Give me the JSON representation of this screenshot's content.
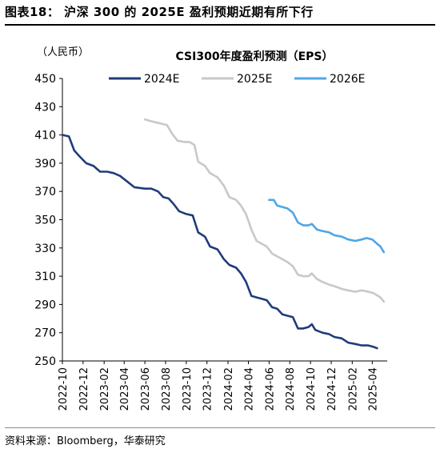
{
  "figure": {
    "title": "图表18： 沪深 300 的 2025E 盈利预期近期有所下行",
    "source": "资料来源：Bloomberg，华泰研究"
  },
  "chart_data": {
    "type": "line",
    "title": "CSI300年度盈利预测（EPS）",
    "ylabel": "（人民币）",
    "xlabel": "",
    "ylim": [
      250,
      450
    ],
    "yticks": [
      250,
      270,
      290,
      310,
      330,
      350,
      370,
      390,
      410,
      430,
      450
    ],
    "xlim": [
      "2022-10-01",
      "2025-05-15"
    ],
    "xticks": [
      "2022-10",
      "2022-12",
      "2023-02",
      "2023-04",
      "2023-06",
      "2023-08",
      "2023-10",
      "2023-12",
      "2024-02",
      "2024-04",
      "2024-06",
      "2024-08",
      "2024-10",
      "2024-12",
      "2025-02",
      "2025-04"
    ],
    "grid": false,
    "legend_position": "top",
    "series": [
      {
        "name": "2024E",
        "color": "#1f3c7c",
        "points": [
          [
            "2022-10-01",
            410
          ],
          [
            "2022-10-20",
            409
          ],
          [
            "2022-11-05",
            399
          ],
          [
            "2022-11-20",
            395
          ],
          [
            "2022-12-10",
            390
          ],
          [
            "2023-01-01",
            388
          ],
          [
            "2023-01-20",
            384
          ],
          [
            "2023-02-10",
            384
          ],
          [
            "2023-03-01",
            383
          ],
          [
            "2023-03-20",
            381
          ],
          [
            "2023-04-10",
            377
          ],
          [
            "2023-05-01",
            373
          ],
          [
            "2023-06-01",
            372
          ],
          [
            "2023-06-20",
            372
          ],
          [
            "2023-07-10",
            370
          ],
          [
            "2023-07-25",
            366
          ],
          [
            "2023-08-10",
            365
          ],
          [
            "2023-08-25",
            361
          ],
          [
            "2023-09-10",
            356
          ],
          [
            "2023-10-01",
            354
          ],
          [
            "2023-10-20",
            353
          ],
          [
            "2023-11-05",
            341
          ],
          [
            "2023-11-25",
            338
          ],
          [
            "2023-12-10",
            331
          ],
          [
            "2024-01-01",
            329
          ],
          [
            "2024-01-20",
            322
          ],
          [
            "2024-02-05",
            318
          ],
          [
            "2024-02-25",
            316
          ],
          [
            "2024-03-10",
            312
          ],
          [
            "2024-03-25",
            306
          ],
          [
            "2024-04-10",
            296
          ],
          [
            "2024-04-25",
            295
          ],
          [
            "2024-05-10",
            294
          ],
          [
            "2024-05-25",
            293
          ],
          [
            "2024-06-10",
            288
          ],
          [
            "2024-06-25",
            287
          ],
          [
            "2024-07-10",
            283
          ],
          [
            "2024-07-25",
            282
          ],
          [
            "2024-08-10",
            281
          ],
          [
            "2024-08-25",
            273
          ],
          [
            "2024-09-10",
            273
          ],
          [
            "2024-09-25",
            274
          ],
          [
            "2024-10-05",
            276
          ],
          [
            "2024-10-15",
            272
          ],
          [
            "2024-11-05",
            270
          ],
          [
            "2024-11-25",
            269
          ],
          [
            "2024-12-10",
            267
          ],
          [
            "2025-01-01",
            266
          ],
          [
            "2025-01-20",
            263
          ],
          [
            "2025-02-10",
            262
          ],
          [
            "2025-03-01",
            261
          ],
          [
            "2025-03-20",
            261
          ],
          [
            "2025-04-05",
            260
          ],
          [
            "2025-04-15",
            259
          ]
        ]
      },
      {
        "name": "2025E",
        "color": "#c8c8c8",
        "points": [
          [
            "2023-06-01",
            421
          ],
          [
            "2023-06-15",
            420
          ],
          [
            "2023-07-01",
            419
          ],
          [
            "2023-07-20",
            418
          ],
          [
            "2023-08-05",
            417
          ],
          [
            "2023-08-20",
            411
          ],
          [
            "2023-09-05",
            406
          ],
          [
            "2023-09-25",
            405
          ],
          [
            "2023-10-10",
            405
          ],
          [
            "2023-10-25",
            403
          ],
          [
            "2023-11-05",
            391
          ],
          [
            "2023-11-25",
            388
          ],
          [
            "2023-12-10",
            383
          ],
          [
            "2024-01-01",
            380
          ],
          [
            "2024-01-20",
            374
          ],
          [
            "2024-02-05",
            366
          ],
          [
            "2024-02-25",
            364
          ],
          [
            "2024-03-10",
            360
          ],
          [
            "2024-03-25",
            354
          ],
          [
            "2024-04-10",
            343
          ],
          [
            "2024-04-25",
            335
          ],
          [
            "2024-05-10",
            333
          ],
          [
            "2024-05-25",
            331
          ],
          [
            "2024-06-10",
            326
          ],
          [
            "2024-06-25",
            324
          ],
          [
            "2024-07-10",
            322
          ],
          [
            "2024-07-25",
            320
          ],
          [
            "2024-08-10",
            317
          ],
          [
            "2024-08-25",
            311
          ],
          [
            "2024-09-10",
            310
          ],
          [
            "2024-09-25",
            310
          ],
          [
            "2024-10-05",
            312
          ],
          [
            "2024-10-20",
            308
          ],
          [
            "2024-11-05",
            306
          ],
          [
            "2024-11-25",
            304
          ],
          [
            "2024-12-10",
            303
          ],
          [
            "2025-01-01",
            301
          ],
          [
            "2025-01-20",
            300
          ],
          [
            "2025-02-10",
            299
          ],
          [
            "2025-03-01",
            300
          ],
          [
            "2025-03-20",
            299
          ],
          [
            "2025-04-05",
            298
          ],
          [
            "2025-04-25",
            295
          ],
          [
            "2025-05-05",
            292
          ]
        ]
      },
      {
        "name": "2026E",
        "color": "#4ea6e6",
        "points": [
          [
            "2024-06-01",
            364
          ],
          [
            "2024-06-15",
            364
          ],
          [
            "2024-06-25",
            360
          ],
          [
            "2024-07-10",
            359
          ],
          [
            "2024-07-25",
            358
          ],
          [
            "2024-08-10",
            355
          ],
          [
            "2024-08-25",
            348
          ],
          [
            "2024-09-10",
            346
          ],
          [
            "2024-09-25",
            346
          ],
          [
            "2024-10-05",
            347
          ],
          [
            "2024-10-20",
            343
          ],
          [
            "2024-11-05",
            342
          ],
          [
            "2024-11-25",
            341
          ],
          [
            "2024-12-10",
            339
          ],
          [
            "2025-01-01",
            338
          ],
          [
            "2025-01-20",
            336
          ],
          [
            "2025-02-10",
            335
          ],
          [
            "2025-03-01",
            336
          ],
          [
            "2025-03-15",
            337
          ],
          [
            "2025-04-01",
            336
          ],
          [
            "2025-04-15",
            333
          ],
          [
            "2025-04-25",
            331
          ],
          [
            "2025-05-05",
            327
          ]
        ]
      }
    ]
  }
}
